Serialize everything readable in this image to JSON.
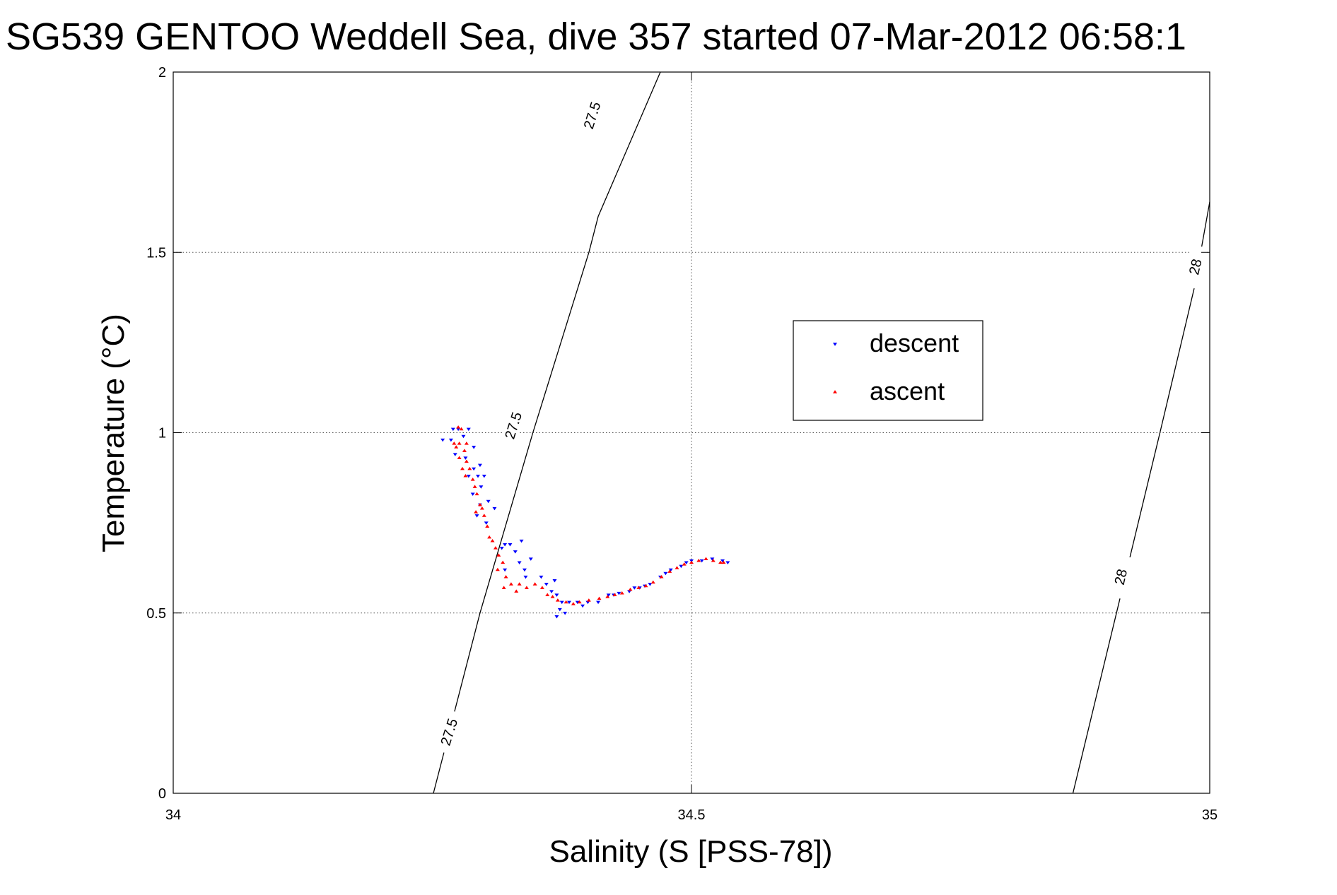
{
  "chart_data": {
    "type": "scatter",
    "title": "SG539 GENTOO Weddell Sea, dive 357 started 07-Mar-2012 06:58:1",
    "xlabel": "Salinity (S [PSS-78])",
    "ylabel": "Temperature (°C)",
    "xlim": [
      34,
      35
    ],
    "ylim": [
      0,
      2
    ],
    "x_ticks": [
      34,
      34.5,
      35
    ],
    "x_tick_labels": [
      "34",
      "34.5",
      "35"
    ],
    "y_ticks": [
      0,
      0.5,
      1,
      1.5,
      2
    ],
    "y_tick_labels": [
      "0",
      "0.5",
      "1",
      "1.5",
      "2"
    ],
    "grid": true,
    "legend_position": "upper-right-center",
    "legend": [
      {
        "label": "descent",
        "color": "#0000ff",
        "marker": "triangle-down"
      },
      {
        "label": "ascent",
        "color": "#ff0000",
        "marker": "triangle-up"
      }
    ],
    "isopycnals": [
      {
        "label": "27.5",
        "points": [
          [
            34.251,
            0.0
          ],
          [
            34.296,
            0.5
          ],
          [
            34.347,
            1.0
          ],
          [
            34.401,
            1.5
          ],
          [
            34.41,
            1.6
          ],
          [
            34.47,
            2.0
          ]
        ],
        "label_positions": [
          [
            34.266,
            0.17
          ],
          [
            34.328,
            1.02
          ],
          [
            34.404,
            1.88
          ]
        ]
      },
      {
        "label": "28",
        "points": [
          [
            34.868,
            0.0
          ],
          [
            34.91,
            0.5
          ],
          [
            34.952,
            1.0
          ],
          [
            34.985,
            1.4
          ],
          [
            35.0,
            1.64
          ]
        ],
        "label_positions": [
          [
            34.914,
            0.6
          ],
          [
            34.986,
            1.46
          ]
        ]
      }
    ],
    "series": [
      {
        "name": "descent",
        "color": "#0000ff",
        "points": [
          [
            34.27,
            1.01
          ],
          [
            34.275,
            1.01
          ],
          [
            34.285,
            1.01
          ],
          [
            34.26,
            0.98
          ],
          [
            34.268,
            0.98
          ],
          [
            34.28,
            0.99
          ],
          [
            34.29,
            0.96
          ],
          [
            34.272,
            0.94
          ],
          [
            34.282,
            0.93
          ],
          [
            34.29,
            0.9
          ],
          [
            34.296,
            0.91
          ],
          [
            34.285,
            0.88
          ],
          [
            34.294,
            0.88
          ],
          [
            34.3,
            0.88
          ],
          [
            34.297,
            0.85
          ],
          [
            34.289,
            0.83
          ],
          [
            34.304,
            0.81
          ],
          [
            34.31,
            0.79
          ],
          [
            34.296,
            0.8
          ],
          [
            34.293,
            0.77
          ],
          [
            34.302,
            0.75
          ],
          [
            34.32,
            0.69
          ],
          [
            34.325,
            0.69
          ],
          [
            34.317,
            0.68
          ],
          [
            34.336,
            0.7
          ],
          [
            34.33,
            0.67
          ],
          [
            34.334,
            0.64
          ],
          [
            34.345,
            0.65
          ],
          [
            34.339,
            0.62
          ],
          [
            34.32,
            0.62
          ],
          [
            34.34,
            0.6
          ],
          [
            34.355,
            0.6
          ],
          [
            34.36,
            0.58
          ],
          [
            34.365,
            0.56
          ],
          [
            34.368,
            0.59
          ],
          [
            34.37,
            0.55
          ],
          [
            34.375,
            0.53
          ],
          [
            34.373,
            0.51
          ],
          [
            34.37,
            0.49
          ],
          [
            34.378,
            0.5
          ],
          [
            34.382,
            0.53
          ],
          [
            34.39,
            0.53
          ],
          [
            34.395,
            0.52
          ],
          [
            34.4,
            0.53
          ],
          [
            34.41,
            0.53
          ],
          [
            34.42,
            0.55
          ],
          [
            34.425,
            0.55
          ],
          [
            34.43,
            0.555
          ],
          [
            34.44,
            0.56
          ],
          [
            34.445,
            0.57
          ],
          [
            34.45,
            0.57
          ],
          [
            34.455,
            0.575
          ],
          [
            34.46,
            0.58
          ],
          [
            34.47,
            0.6
          ],
          [
            34.475,
            0.61
          ],
          [
            34.48,
            0.62
          ],
          [
            34.49,
            0.63
          ],
          [
            34.495,
            0.64
          ],
          [
            34.5,
            0.645
          ],
          [
            34.51,
            0.645
          ],
          [
            34.52,
            0.65
          ],
          [
            34.53,
            0.645
          ],
          [
            34.535,
            0.64
          ]
        ]
      },
      {
        "name": "ascent",
        "color": "#ff0000",
        "points": [
          [
            34.275,
            1.015
          ],
          [
            34.278,
            1.01
          ],
          [
            34.271,
            0.97
          ],
          [
            34.276,
            0.97
          ],
          [
            34.283,
            0.97
          ],
          [
            34.273,
            0.96
          ],
          [
            34.281,
            0.95
          ],
          [
            34.276,
            0.93
          ],
          [
            34.283,
            0.92
          ],
          [
            34.279,
            0.9
          ],
          [
            34.286,
            0.9
          ],
          [
            34.282,
            0.88
          ],
          [
            34.289,
            0.87
          ],
          [
            34.291,
            0.85
          ],
          [
            34.293,
            0.83
          ],
          [
            34.296,
            0.8
          ],
          [
            34.298,
            0.79
          ],
          [
            34.292,
            0.78
          ],
          [
            34.3,
            0.77
          ],
          [
            34.303,
            0.74
          ],
          [
            34.305,
            0.71
          ],
          [
            34.308,
            0.7
          ],
          [
            34.311,
            0.68
          ],
          [
            34.314,
            0.66
          ],
          [
            34.318,
            0.64
          ],
          [
            34.313,
            0.62
          ],
          [
            34.321,
            0.6
          ],
          [
            34.326,
            0.58
          ],
          [
            34.319,
            0.57
          ],
          [
            34.331,
            0.56
          ],
          [
            34.334,
            0.58
          ],
          [
            34.341,
            0.57
          ],
          [
            34.349,
            0.58
          ],
          [
            34.356,
            0.57
          ],
          [
            34.361,
            0.55
          ],
          [
            34.366,
            0.545
          ],
          [
            34.371,
            0.535
          ],
          [
            34.379,
            0.53
          ],
          [
            34.386,
            0.525
          ],
          [
            34.392,
            0.53
          ],
          [
            34.401,
            0.535
          ],
          [
            34.411,
            0.54
          ],
          [
            34.419,
            0.545
          ],
          [
            34.426,
            0.55
          ],
          [
            34.433,
            0.555
          ],
          [
            34.441,
            0.565
          ],
          [
            34.449,
            0.57
          ],
          [
            34.456,
            0.575
          ],
          [
            34.463,
            0.585
          ],
          [
            34.471,
            0.6
          ],
          [
            34.479,
            0.615
          ],
          [
            34.486,
            0.625
          ],
          [
            34.493,
            0.635
          ],
          [
            34.5,
            0.64
          ],
          [
            34.507,
            0.645
          ],
          [
            34.514,
            0.65
          ],
          [
            34.521,
            0.645
          ],
          [
            34.528,
            0.64
          ],
          [
            34.531,
            0.64
          ]
        ]
      }
    ]
  }
}
